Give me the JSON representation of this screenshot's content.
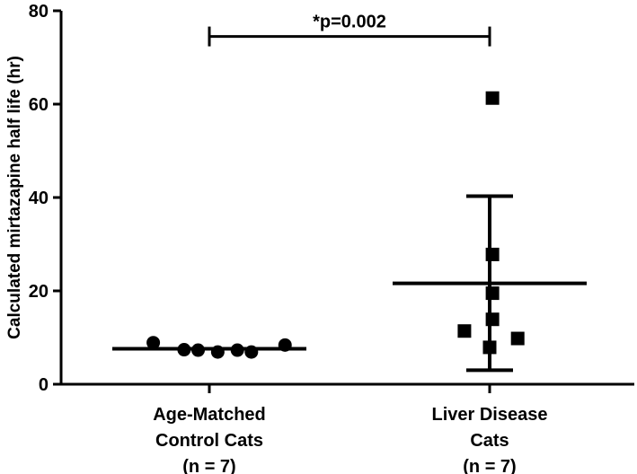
{
  "chart_data": {
    "type": "scatter",
    "title": "",
    "ylabel": "Calculated mirtazapine half life (hr)",
    "xlabel": "",
    "ylim": [
      0,
      80
    ],
    "yticks": [
      0,
      20,
      40,
      60,
      80
    ],
    "yticks_labels": [
      "0",
      "20",
      "40",
      "60",
      "80"
    ],
    "categories": [
      {
        "lines": [
          "Age-Matched",
          "Control Cats",
          "(n = 7)"
        ]
      },
      {
        "lines": [
          "Liver Disease",
          "Cats",
          "(n = 7)"
        ]
      }
    ],
    "series": [
      {
        "marker": "circle",
        "category": 0,
        "points": [
          {
            "offset": -0.2,
            "y": 8.9
          },
          {
            "offset": -0.09,
            "y": 7.4
          },
          {
            "offset": -0.04,
            "y": 7.3
          },
          {
            "offset": 0.03,
            "y": 6.9
          },
          {
            "offset": 0.1,
            "y": 7.3
          },
          {
            "offset": 0.15,
            "y": 6.9
          },
          {
            "offset": 0.27,
            "y": 8.4
          }
        ],
        "mean": 7.6,
        "sd": [
          7.6,
          7.6
        ]
      },
      {
        "marker": "square",
        "category": 1,
        "points": [
          {
            "offset": 0.01,
            "y": 61.3
          },
          {
            "offset": 0.01,
            "y": 27.8
          },
          {
            "offset": 0.01,
            "y": 19.5
          },
          {
            "offset": 0.01,
            "y": 13.9
          },
          {
            "offset": -0.09,
            "y": 11.4
          },
          {
            "offset": 0.0,
            "y": 7.9
          },
          {
            "offset": 0.1,
            "y": 9.8
          }
        ],
        "mean": 21.6,
        "sd": [
          3.0,
          40.3
        ]
      }
    ],
    "significance": {
      "label": "*p=0.002",
      "y": 74.5,
      "from": 0,
      "to": 1
    }
  }
}
